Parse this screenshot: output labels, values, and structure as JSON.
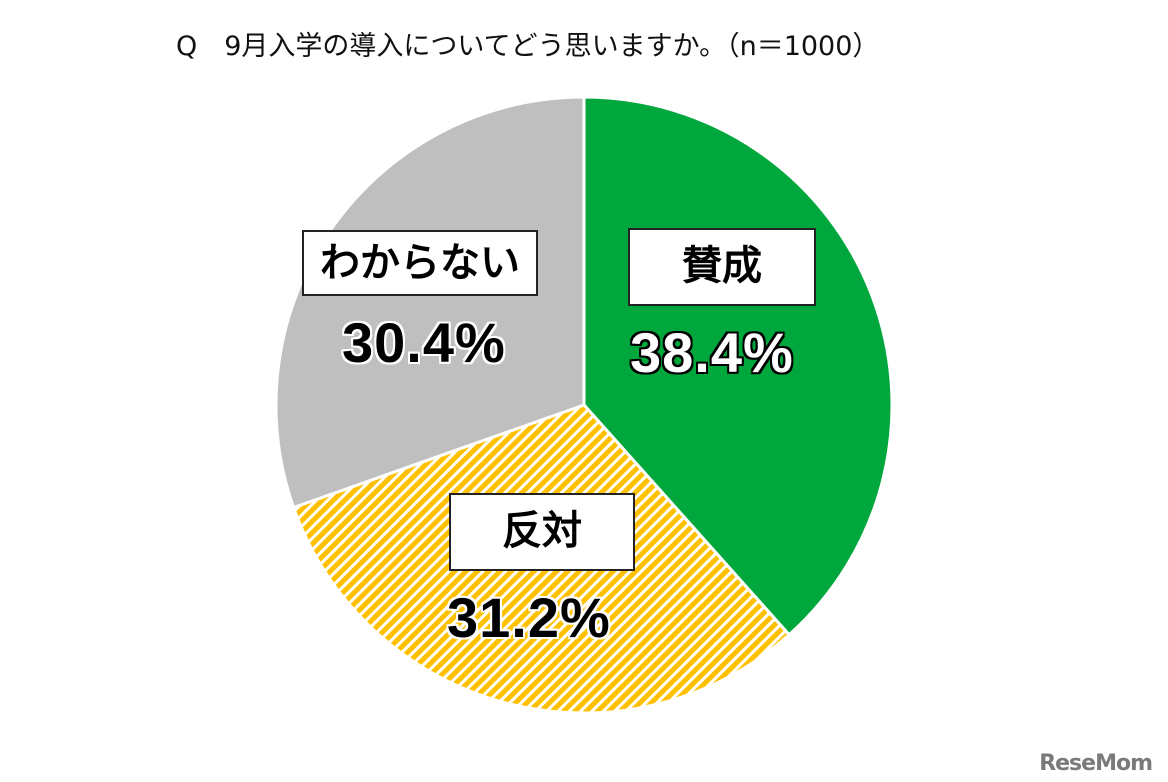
{
  "title": "Q　9月入学の導入についてどう思いますか。（n＝1000）",
  "logo": "ReseMom",
  "slices": [
    {
      "label": "賛成",
      "value": "38.4%",
      "color": "#00A73C"
    },
    {
      "label": "反対",
      "value": "31.2%",
      "color": "#FFC000"
    },
    {
      "label": "わからない",
      "value": "30.4%",
      "color": "#BFBFBF"
    }
  ],
  "chart_data": {
    "type": "pie",
    "title": "Q　9月入学の導入についてどう思いますか。（n＝1000）",
    "categories": [
      "賛成",
      "反対",
      "わからない"
    ],
    "values": [
      38.4,
      31.2,
      30.4
    ],
    "colors": [
      "#00A73C",
      "#FFC000",
      "#BFBFBF"
    ],
    "value_labels": [
      "38.4%",
      "31.2%",
      "30.4%"
    ],
    "start_angle": "12 o'clock, clockwise",
    "notes": "反対 slice filled with yellow/white diagonal hatch"
  }
}
